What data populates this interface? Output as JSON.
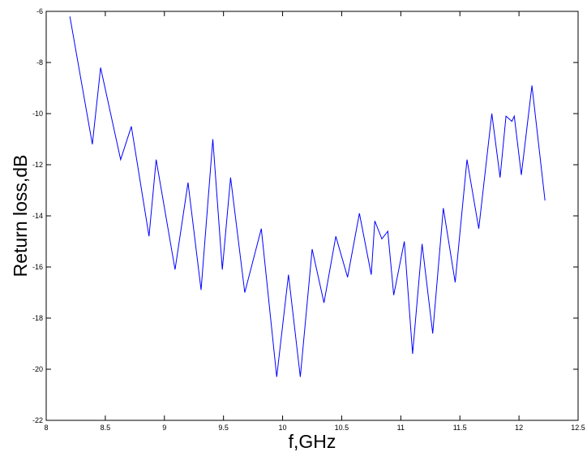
{
  "chart_data": {
    "type": "line",
    "title": "",
    "xlabel": "f,GHz",
    "ylabel": "Return loss,dB",
    "xlim": [
      8,
      12.5
    ],
    "ylim": [
      -22,
      -6
    ],
    "xticks": [
      8,
      8.5,
      9,
      9.5,
      10,
      10.5,
      11,
      11.5,
      12,
      12.5
    ],
    "xtick_labels": [
      "8",
      "8.5",
      "9",
      "9.5",
      "10",
      "10.5",
      "11",
      "11.5",
      "12",
      "12.5"
    ],
    "yticks": [
      -22,
      -20,
      -18,
      -16,
      -14,
      -12,
      -10,
      -8,
      -6
    ],
    "ytick_labels": [
      "-22",
      "-20",
      "-18",
      "-16",
      "-14",
      "-12",
      "-10",
      "-8",
      "-6"
    ],
    "grid": false,
    "line_color": "#0000ff",
    "series": [
      {
        "x": [
          8.2,
          8.39,
          8.46,
          8.63,
          8.72,
          8.87,
          8.93,
          9.09,
          9.2,
          9.31,
          9.41,
          9.49,
          9.56,
          9.68,
          9.82,
          9.95,
          10.05,
          10.15,
          10.25,
          10.35,
          10.45,
          10.55,
          10.65,
          10.75,
          10.78,
          10.84,
          10.89,
          10.94,
          11.03,
          11.1,
          11.18,
          11.27,
          11.36,
          11.46,
          11.56,
          11.66,
          11.77,
          11.84,
          11.89,
          11.94,
          11.96,
          12.02,
          12.11,
          12.22
        ],
        "y": [
          -6.2,
          -11.2,
          -8.2,
          -11.8,
          -10.5,
          -14.8,
          -11.8,
          -16.1,
          -12.7,
          -16.9,
          -11.0,
          -16.1,
          -12.5,
          -17.0,
          -14.5,
          -20.3,
          -16.3,
          -20.3,
          -15.3,
          -17.4,
          -14.8,
          -16.4,
          -13.9,
          -16.3,
          -14.2,
          -14.9,
          -14.6,
          -17.1,
          -15.0,
          -19.4,
          -15.1,
          -18.6,
          -13.7,
          -16.6,
          -11.8,
          -14.5,
          -10.0,
          -12.5,
          -10.1,
          -10.3,
          -10.1,
          -12.4,
          -8.9,
          -13.4
        ]
      }
    ]
  }
}
